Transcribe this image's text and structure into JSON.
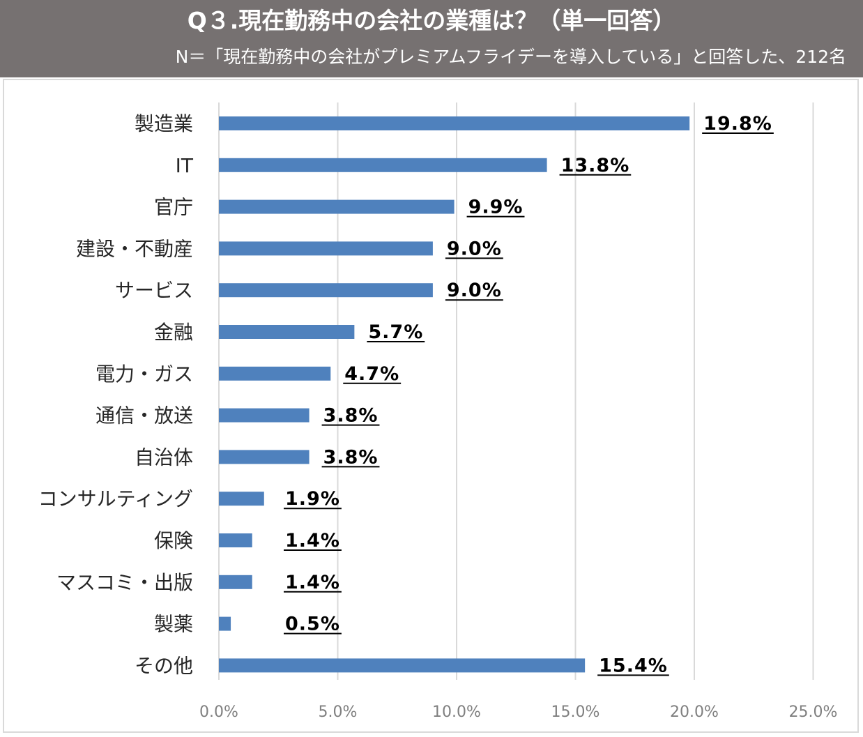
{
  "header": {
    "title": "Q３.現在勤務中の会社の業種は？（単一回答）",
    "subtitle": "N＝「現在勤務中の会社がプレミアムフライデーを導入している」と回答した、212名"
  },
  "colors": {
    "header_bg": "#767171",
    "bar": "#4f81bd",
    "grid": "#d9d9d9"
  },
  "chart_data": {
    "type": "bar",
    "orientation": "horizontal",
    "categories": [
      "製造業",
      "IT",
      "官庁",
      "建設・不動産",
      "サービス",
      "金融",
      "電力・ガス",
      "通信・放送",
      "自治体",
      "コンサルティング",
      "保険",
      "マスコミ・出版",
      "製薬",
      "その他"
    ],
    "values": [
      19.8,
      13.8,
      9.9,
      9.0,
      9.0,
      5.7,
      4.7,
      3.8,
      3.8,
      1.9,
      1.4,
      1.4,
      0.5,
      15.4
    ],
    "labels": [
      "19.8%",
      "13.8%",
      "9.9%",
      "9.0%",
      "9.0%",
      "5.7%",
      "4.7%",
      "3.8%",
      "3.8%",
      "1.9%",
      "1.4%",
      "1.4%",
      "0.5%",
      "15.4%"
    ],
    "xlim": [
      0,
      25
    ],
    "xticks": [
      "0.0%",
      "5.0%",
      "10.0%",
      "15.0%",
      "20.0%",
      "25.0%"
    ],
    "grid": true,
    "legend": false
  }
}
